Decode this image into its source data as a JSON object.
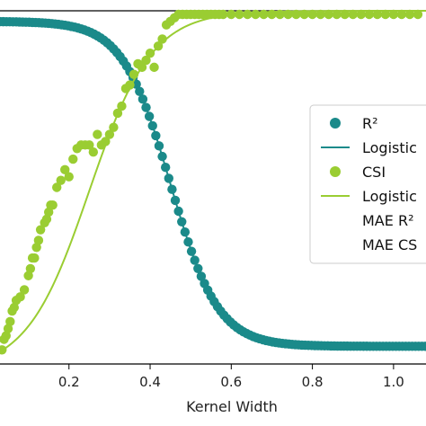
{
  "chart_data": {
    "type": "scatter",
    "xlabel": "Kernel Width",
    "ylabel": "",
    "x_ticks": [
      "0.2",
      "0.4",
      "0.6",
      "0.8",
      "1.0"
    ],
    "x_tick_values": [
      0.2,
      0.4,
      0.6,
      0.8,
      1.0
    ],
    "xlim": [
      0.03,
      1.08
    ],
    "ylim": [
      0.0,
      1.0
    ],
    "grid": false,
    "legend_position": "right",
    "colors": {
      "r2": "#1b8a8a",
      "csi": "#9acd32"
    },
    "legend": [
      {
        "label": "R²",
        "kind": "marker",
        "color": "#1b8a8a"
      },
      {
        "label": "Logistic",
        "kind": "line",
        "color": "#1b8a8a"
      },
      {
        "label": "CSI",
        "kind": "marker",
        "color": "#9acd32"
      },
      {
        "label": "Logistic",
        "kind": "line",
        "color": "#9acd32"
      },
      {
        "label": "MAE R²",
        "kind": "none",
        "color": ""
      },
      {
        "label": "MAE CS",
        "kind": "none",
        "color": ""
      }
    ],
    "series": [
      {
        "name": "R²",
        "kind": "scatter",
        "color": "#1b8a8a",
        "logistic": {
          "L": 0.92,
          "k": -17,
          "x0": 0.45,
          "offset": 0.05
        },
        "x_range": [
          0.03,
          1.08,
          0.008
        ]
      },
      {
        "name": "Logistic",
        "kind": "line",
        "color": "#1b8a8a",
        "logistic": {
          "L": 0.92,
          "k": -17,
          "x0": 0.45,
          "offset": 0.05
        }
      },
      {
        "name": "CSI",
        "kind": "scatter",
        "color": "#9acd32",
        "x": [
          0.035,
          0.04,
          0.045,
          0.05,
          0.055,
          0.06,
          0.065,
          0.07,
          0.08,
          0.09,
          0.1,
          0.105,
          0.11,
          0.115,
          0.12,
          0.125,
          0.13,
          0.14,
          0.145,
          0.15,
          0.155,
          0.16,
          0.17,
          0.18,
          0.19,
          0.2,
          0.21,
          0.22,
          0.23,
          0.24,
          0.25,
          0.26,
          0.27,
          0.28,
          0.29,
          0.3,
          0.31,
          0.32,
          0.33,
          0.34,
          0.35,
          0.36,
          0.37,
          0.38,
          0.39,
          0.4,
          0.41,
          0.42,
          0.43,
          0.44,
          0.45,
          0.46,
          0.47,
          0.48,
          0.49,
          0.5,
          0.51,
          0.52,
          0.53,
          0.54,
          0.55,
          0.56,
          0.57,
          0.58,
          0.6,
          0.62,
          0.64,
          0.66,
          0.68,
          0.7,
          0.72,
          0.74,
          0.76,
          0.78,
          0.8,
          0.82,
          0.84,
          0.86,
          0.88,
          0.9,
          0.92,
          0.94,
          0.96,
          0.98,
          1.0,
          1.02,
          1.04,
          1.06
        ],
        "y": [
          0.04,
          0.07,
          0.08,
          0.1,
          0.12,
          0.15,
          0.16,
          0.18,
          0.19,
          0.21,
          0.25,
          0.27,
          0.3,
          0.3,
          0.33,
          0.35,
          0.38,
          0.4,
          0.41,
          0.43,
          0.45,
          0.45,
          0.5,
          0.52,
          0.55,
          0.53,
          0.58,
          0.61,
          0.62,
          0.62,
          0.62,
          0.6,
          0.65,
          0.62,
          0.63,
          0.65,
          0.67,
          0.71,
          0.73,
          0.78,
          0.79,
          0.82,
          0.85,
          0.84,
          0.86,
          0.88,
          0.84,
          0.9,
          0.92,
          0.96,
          0.97,
          0.98,
          0.99,
          1.0,
          1.0,
          1.0,
          1.0,
          1.0,
          1.0,
          1.0,
          1.0,
          1.0,
          1.0,
          1.0,
          1.0,
          1.0,
          1.0,
          1.0,
          1.0,
          1.0,
          1.0,
          1.0,
          1.0,
          1.0,
          1.0,
          1.0,
          1.0,
          1.0,
          1.0,
          1.0,
          1.0,
          1.0,
          1.0,
          1.0,
          1.0,
          1.0,
          1.0,
          1.0
        ]
      },
      {
        "name": "Logistic",
        "kind": "line",
        "color": "#9acd32",
        "logistic": {
          "L": 1.02,
          "k": 13,
          "x0": 0.25,
          "offset": -0.02
        }
      }
    ]
  }
}
